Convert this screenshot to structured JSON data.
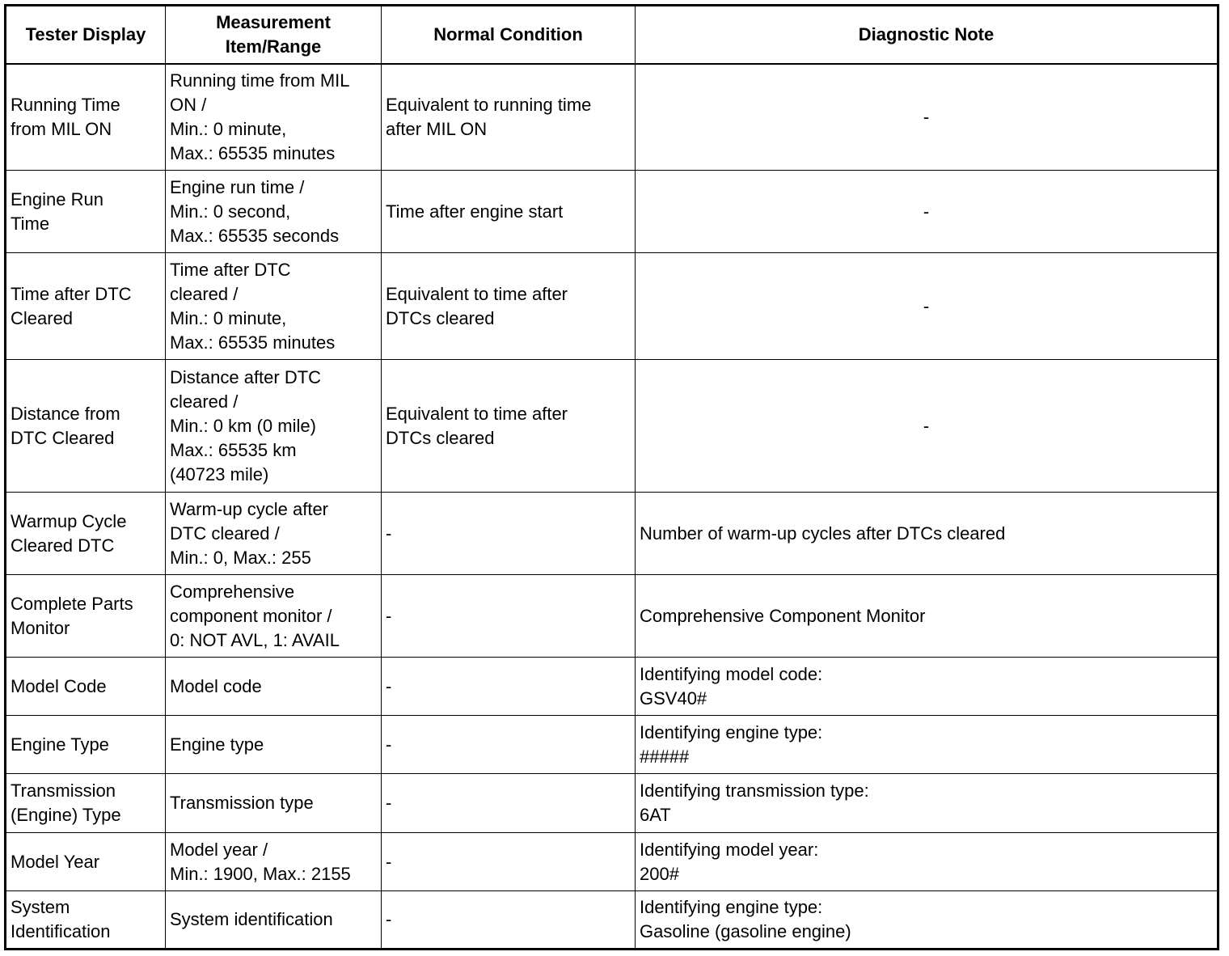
{
  "headers": [
    "Tester Display",
    "Measurement\nItem/Range",
    "Normal Condition",
    "Diagnostic Note"
  ],
  "rows": [
    {
      "tester": "Running Time\nfrom MIL ON",
      "range": "Running time from MIL\nON /\nMin.: 0 minute,\nMax.: 65535 minutes",
      "normal": "Equivalent to running time\nafter MIL ON",
      "note": "-"
    },
    {
      "tester": "Engine Run\nTime",
      "range": "Engine run time /\nMin.: 0 second,\nMax.: 65535 seconds",
      "normal": "Time after engine start",
      "note": "-"
    },
    {
      "tester": "Time after DTC\nCleared",
      "range": "Time after DTC\ncleared /\nMin.: 0 minute,\nMax.: 65535 minutes",
      "normal": "Equivalent to time after\nDTCs cleared",
      "note": "-"
    },
    {
      "tester": "Distance from\nDTC Cleared",
      "range": "Distance after DTC\ncleared /\nMin.: 0 km (0 mile)\nMax.: 65535 km\n(40723 mile)",
      "normal": "Equivalent to time after\nDTCs cleared",
      "note": "-"
    },
    {
      "tester": "Warmup Cycle\nCleared DTC",
      "range": "Warm-up cycle after\nDTC cleared /\nMin.: 0, Max.: 255",
      "normal": "-",
      "note": "Number of warm-up cycles after DTCs cleared"
    },
    {
      "tester": "Complete Parts\nMonitor",
      "range": "Comprehensive\ncomponent monitor /\n0: NOT AVL, 1: AVAIL",
      "normal": "-",
      "note": "Comprehensive Component Monitor"
    },
    {
      "tester": "Model Code",
      "range": "Model code",
      "normal": "-",
      "note": "Identifying model code:\nGSV40#"
    },
    {
      "tester": "Engine Type",
      "range": "Engine type",
      "normal": "-",
      "note": "Identifying engine type:\n#####"
    },
    {
      "tester": "Transmission\n(Engine) Type",
      "range": "Transmission type",
      "normal": "-",
      "note": "Identifying transmission type:\n6AT"
    },
    {
      "tester": "Model Year",
      "range": "Model year /\nMin.: 1900, Max.: 2155",
      "normal": "-",
      "note": "Identifying model year:\n200#"
    },
    {
      "tester": "System\nIdentification",
      "range": "System identification",
      "normal": "-",
      "note": "Identifying engine type:\nGasoline (gasoline engine)"
    }
  ]
}
